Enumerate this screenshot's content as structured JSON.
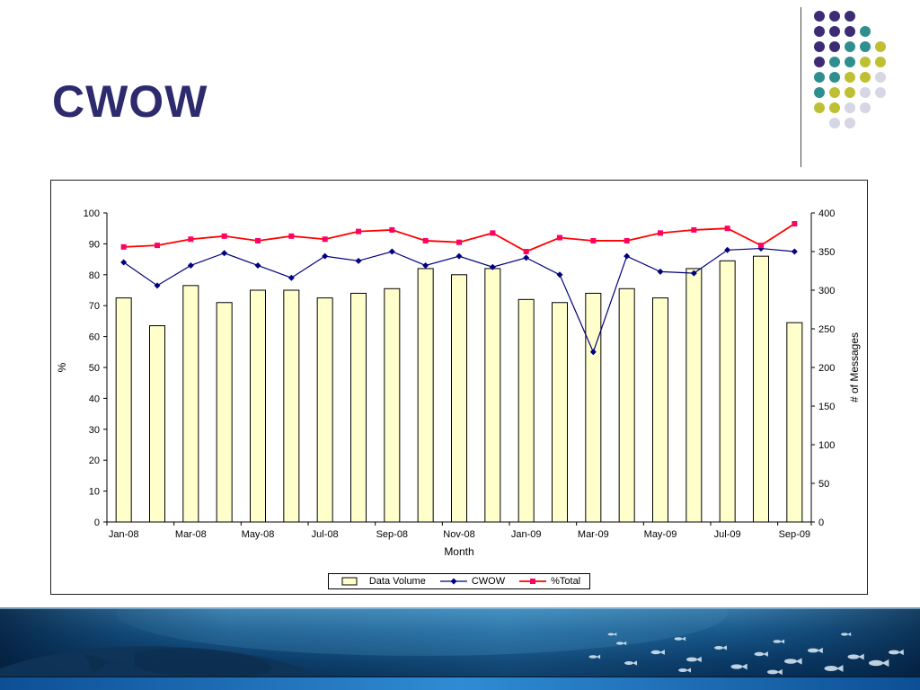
{
  "slide": {
    "title": "CWOW",
    "title_color": "#2d2a6e"
  },
  "decoration": {
    "dot_colors": {
      "purple": "#3d2c74",
      "teal": "#2f8f8f",
      "yellow": "#bfbf33",
      "gray": "#d6d6e4"
    },
    "dot_grid": [
      [
        "purple",
        "purple",
        "purple",
        "",
        ""
      ],
      [
        "purple",
        "purple",
        "purple",
        "teal",
        ""
      ],
      [
        "purple",
        "purple",
        "teal",
        "teal",
        "yellow"
      ],
      [
        "purple",
        "teal",
        "teal",
        "yellow",
        "yellow"
      ],
      [
        "teal",
        "teal",
        "yellow",
        "yellow",
        "gray"
      ],
      [
        "teal",
        "yellow",
        "yellow",
        "gray",
        "gray"
      ],
      [
        "yellow",
        "yellow",
        "gray",
        "gray",
        ""
      ],
      [
        "",
        "gray",
        "gray",
        "",
        ""
      ]
    ]
  },
  "chart_data": {
    "type": "bar",
    "combo": true,
    "categories": [
      "Jan-08",
      "Feb-08",
      "Mar-08",
      "Apr-08",
      "May-08",
      "Jun-08",
      "Jul-08",
      "Aug-08",
      "Sep-08",
      "Oct-08",
      "Nov-08",
      "Dec-08",
      "Jan-09",
      "Feb-09",
      "Mar-09",
      "Apr-09",
      "May-09",
      "Jun-09",
      "Jul-09",
      "Aug-09",
      "Sep-09"
    ],
    "xtick_step": 2,
    "x_tick_labels": [
      "Jan-08",
      "Mar-08",
      "May-08",
      "Jul-08",
      "Sep-08",
      "Nov-08",
      "Jan-09",
      "Mar-09",
      "May-09",
      "Jul-09",
      "Sep-09"
    ],
    "series": [
      {
        "name": "Data Volume",
        "type": "bar",
        "axis": "right",
        "values": [
          290,
          254,
          306,
          284,
          300,
          300,
          290,
          296,
          302,
          328,
          320,
          328,
          288,
          284,
          296,
          302,
          290,
          328,
          338,
          344,
          258
        ]
      },
      {
        "name": "CWOW",
        "type": "line",
        "marker": "diamond",
        "axis": "left",
        "values": [
          84,
          76.5,
          83,
          87,
          83,
          79,
          86,
          84.5,
          87.5,
          83,
          86,
          82.5,
          85.5,
          80,
          55,
          86,
          81,
          80.5,
          88,
          88.5,
          87.5
        ]
      },
      {
        "name": "%Total",
        "type": "line",
        "marker": "square",
        "axis": "left",
        "values": [
          89,
          89.5,
          91.5,
          92.5,
          91,
          92.5,
          91.5,
          94,
          94.5,
          91,
          90.5,
          93.5,
          87.5,
          92,
          91,
          91,
          93.5,
          94.5,
          95,
          89.5,
          96.5
        ]
      }
    ],
    "xlabel": "Month",
    "ylabel_left": "%",
    "ylabel_right": "# of Messages",
    "ylim_left": [
      0,
      100
    ],
    "ytick_left": 10,
    "ylim_right": [
      0,
      400
    ],
    "ytick_right": 50,
    "grid": false,
    "legend_position": "bottom",
    "colors": {
      "bar_fill": "#ffffcc",
      "bar_stroke": "#000000",
      "cwow_line": "#000080",
      "total_line": "#ff0000",
      "total_marker": "#ff0066"
    }
  }
}
